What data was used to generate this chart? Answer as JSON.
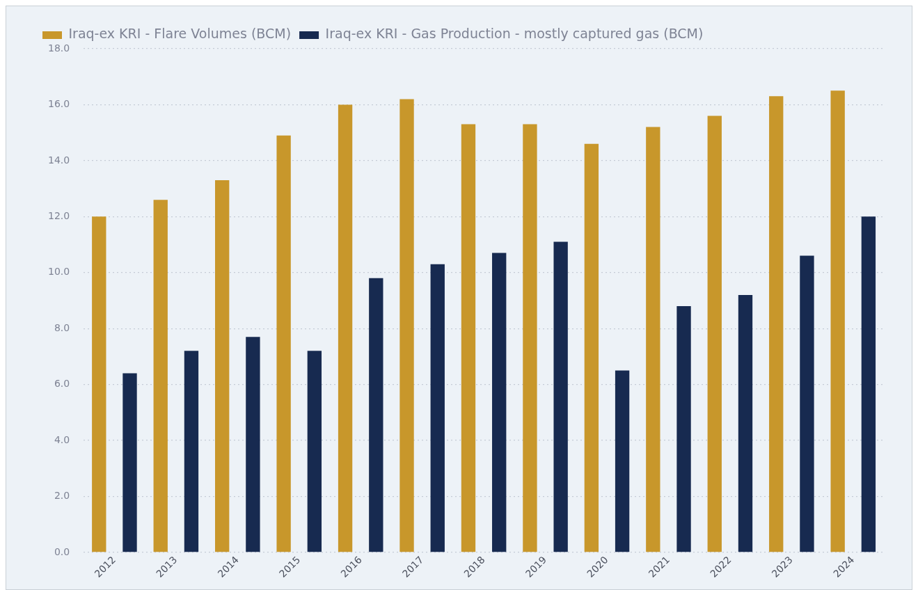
{
  "chart_data": {
    "type": "bar",
    "categories": [
      "2012",
      "2013",
      "2014",
      "2015",
      "2016",
      "2017",
      "2018",
      "2019",
      "2020",
      "2021",
      "2022",
      "2023",
      "2024"
    ],
    "series": [
      {
        "name": "Iraq-ex KRI - Flare Volumes (BCM)",
        "color": "#c8972b",
        "values": [
          12.0,
          12.6,
          13.3,
          14.9,
          16.0,
          16.2,
          15.3,
          15.3,
          14.6,
          15.2,
          15.6,
          16.3,
          16.5
        ]
      },
      {
        "name": "Iraq-ex KRI - Gas Production - mostly captured gas (BCM)",
        "color": "#172a50",
        "values": [
          6.4,
          7.2,
          7.7,
          7.2,
          9.8,
          10.3,
          10.7,
          11.1,
          6.5,
          8.8,
          9.2,
          10.6,
          12.0
        ]
      }
    ],
    "ylim": [
      0,
      18
    ],
    "yticks": [
      {
        "value": 0,
        "label": "0.0"
      },
      {
        "value": 2,
        "label": "2.0"
      },
      {
        "value": 4,
        "label": "4.0"
      },
      {
        "value": 6,
        "label": "6.0"
      },
      {
        "value": 8,
        "label": "8.0"
      },
      {
        "value": 10,
        "label": "10.0"
      },
      {
        "value": 12,
        "label": "12.0"
      },
      {
        "value": 14,
        "label": "14.0"
      },
      {
        "value": 16,
        "label": "16.0"
      },
      {
        "value": 18,
        "label": "18.0"
      }
    ],
    "grid": "y",
    "legend": "top left"
  }
}
